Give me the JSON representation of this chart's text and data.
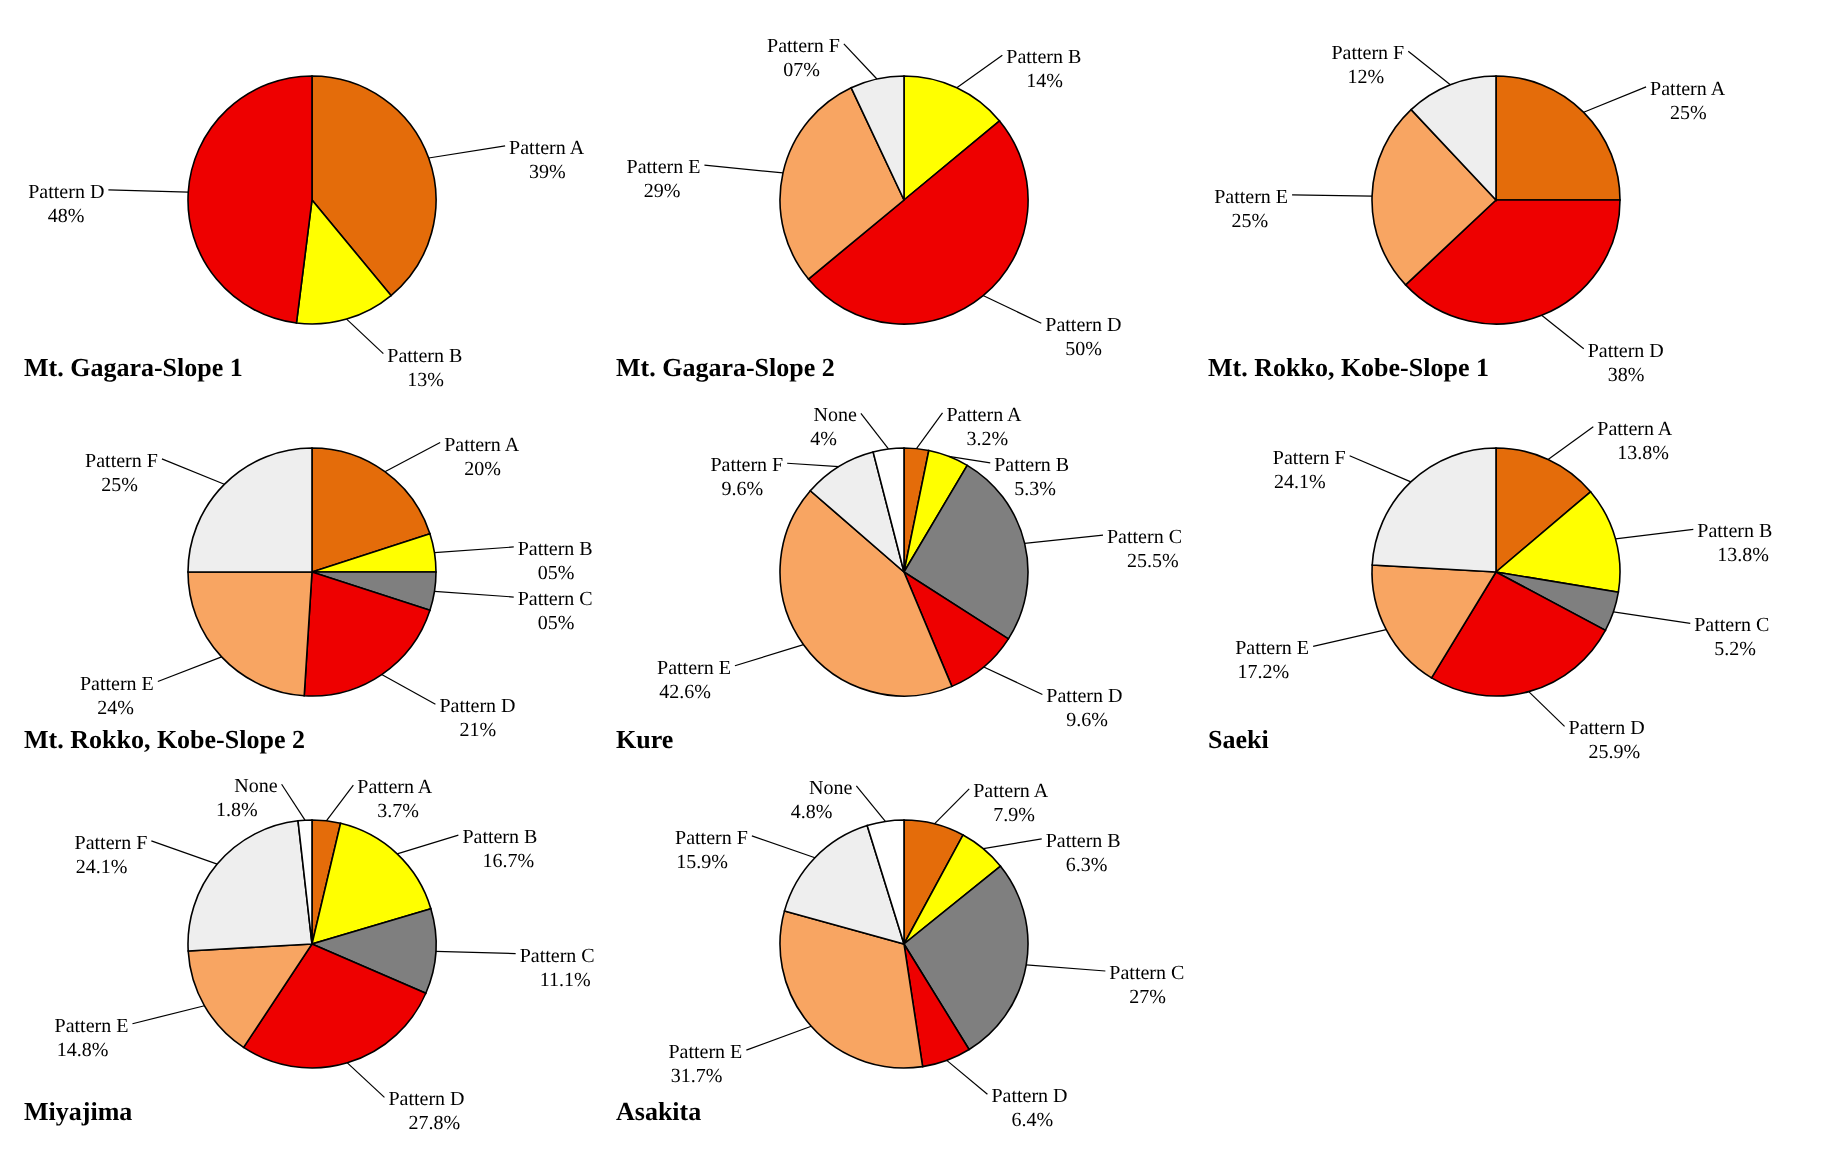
{
  "chart_data": [
    {
      "type": "pie",
      "title": "Mt. Gagara-Slope 1",
      "categories": [
        "Pattern A",
        "Pattern B",
        "Pattern D"
      ],
      "values": [
        39,
        13,
        48
      ],
      "colors": [
        "#e46c0a",
        "#ffff00",
        "#ee0000"
      ],
      "value_labels": [
        "39%",
        "13%",
        "48%"
      ]
    },
    {
      "type": "pie",
      "title": "Mt. Gagara-Slope 2",
      "categories": [
        "Pattern B",
        "Pattern D",
        "Pattern E",
        "Pattern F"
      ],
      "values": [
        14,
        50,
        29,
        7
      ],
      "colors": [
        "#ffff00",
        "#ee0000",
        "#f8a562",
        "#eeeeee"
      ],
      "value_labels": [
        "14%",
        "50%",
        "29%",
        "07%"
      ]
    },
    {
      "type": "pie",
      "title": "Mt. Rokko, Kobe-Slope 1",
      "categories": [
        "Pattern A",
        "Pattern D",
        "Pattern E",
        "Pattern F"
      ],
      "values": [
        25,
        38,
        25,
        12
      ],
      "colors": [
        "#e46c0a",
        "#ee0000",
        "#f8a562",
        "#eeeeee"
      ],
      "value_labels": [
        "25%",
        "38%",
        "25%",
        "12%"
      ]
    },
    {
      "type": "pie",
      "title": "Mt. Rokko, Kobe-Slope 2",
      "categories": [
        "Pattern A",
        "Pattern B",
        "Pattern C",
        "Pattern D",
        "Pattern E",
        "Pattern F"
      ],
      "values": [
        20,
        5,
        5,
        21,
        24,
        25
      ],
      "colors": [
        "#e46c0a",
        "#ffff00",
        "#7f7f7f",
        "#ee0000",
        "#f8a562",
        "#eeeeee"
      ],
      "value_labels": [
        "20%",
        "05%",
        "05%",
        "21%",
        "24%",
        "25%"
      ]
    },
    {
      "type": "pie",
      "title": "Kure",
      "categories": [
        "Pattern A",
        "Pattern B",
        "Pattern C",
        "Pattern D",
        "Pattern E",
        "Pattern F",
        "None"
      ],
      "values": [
        3.2,
        5.3,
        25.5,
        9.6,
        42.6,
        9.6,
        4
      ],
      "colors": [
        "#e46c0a",
        "#ffff00",
        "#7f7f7f",
        "#ee0000",
        "#f8a562",
        "#eeeeee",
        "#ffffff"
      ],
      "value_labels": [
        "3.2%",
        "5.3%",
        "25.5%",
        "9.6%",
        "42.6%",
        "9.6%",
        "4%"
      ]
    },
    {
      "type": "pie",
      "title": "Saeki",
      "categories": [
        "Pattern A",
        "Pattern B",
        "Pattern C",
        "Pattern D",
        "Pattern E",
        "Pattern F"
      ],
      "values": [
        13.8,
        13.8,
        5.2,
        25.9,
        17.2,
        24.1
      ],
      "colors": [
        "#e46c0a",
        "#ffff00",
        "#7f7f7f",
        "#ee0000",
        "#f8a562",
        "#eeeeee"
      ],
      "value_labels": [
        "13.8%",
        "13.8%",
        "5.2%",
        "25.9%",
        "17.2%",
        "24.1%"
      ]
    },
    {
      "type": "pie",
      "title": "Miyajima",
      "categories": [
        "Pattern A",
        "Pattern B",
        "Pattern C",
        "Pattern D",
        "Pattern E",
        "Pattern F",
        "None"
      ],
      "values": [
        3.7,
        16.7,
        11.1,
        27.8,
        14.8,
        24.1,
        1.8
      ],
      "colors": [
        "#e46c0a",
        "#ffff00",
        "#7f7f7f",
        "#ee0000",
        "#f8a562",
        "#eeeeee",
        "#ffffff"
      ],
      "value_labels": [
        "3.7%",
        "16.7%",
        "11.1%",
        "27.8%",
        "14.8%",
        "24.1%",
        "1.8%"
      ]
    },
    {
      "type": "pie",
      "title": "Asakita",
      "categories": [
        "Pattern A",
        "Pattern B",
        "Pattern C",
        "Pattern D",
        "Pattern E",
        "Pattern F",
        "None"
      ],
      "values": [
        7.9,
        6.3,
        27,
        6.4,
        31.7,
        15.9,
        4.8
      ],
      "colors": [
        "#e46c0a",
        "#ffff00",
        "#7f7f7f",
        "#ee0000",
        "#f8a562",
        "#eeeeee",
        "#ffffff"
      ],
      "value_labels": [
        "7.9%",
        "6.3%",
        "27%",
        "6.4%",
        "31.7%",
        "15.9%",
        "4.8%"
      ]
    }
  ]
}
